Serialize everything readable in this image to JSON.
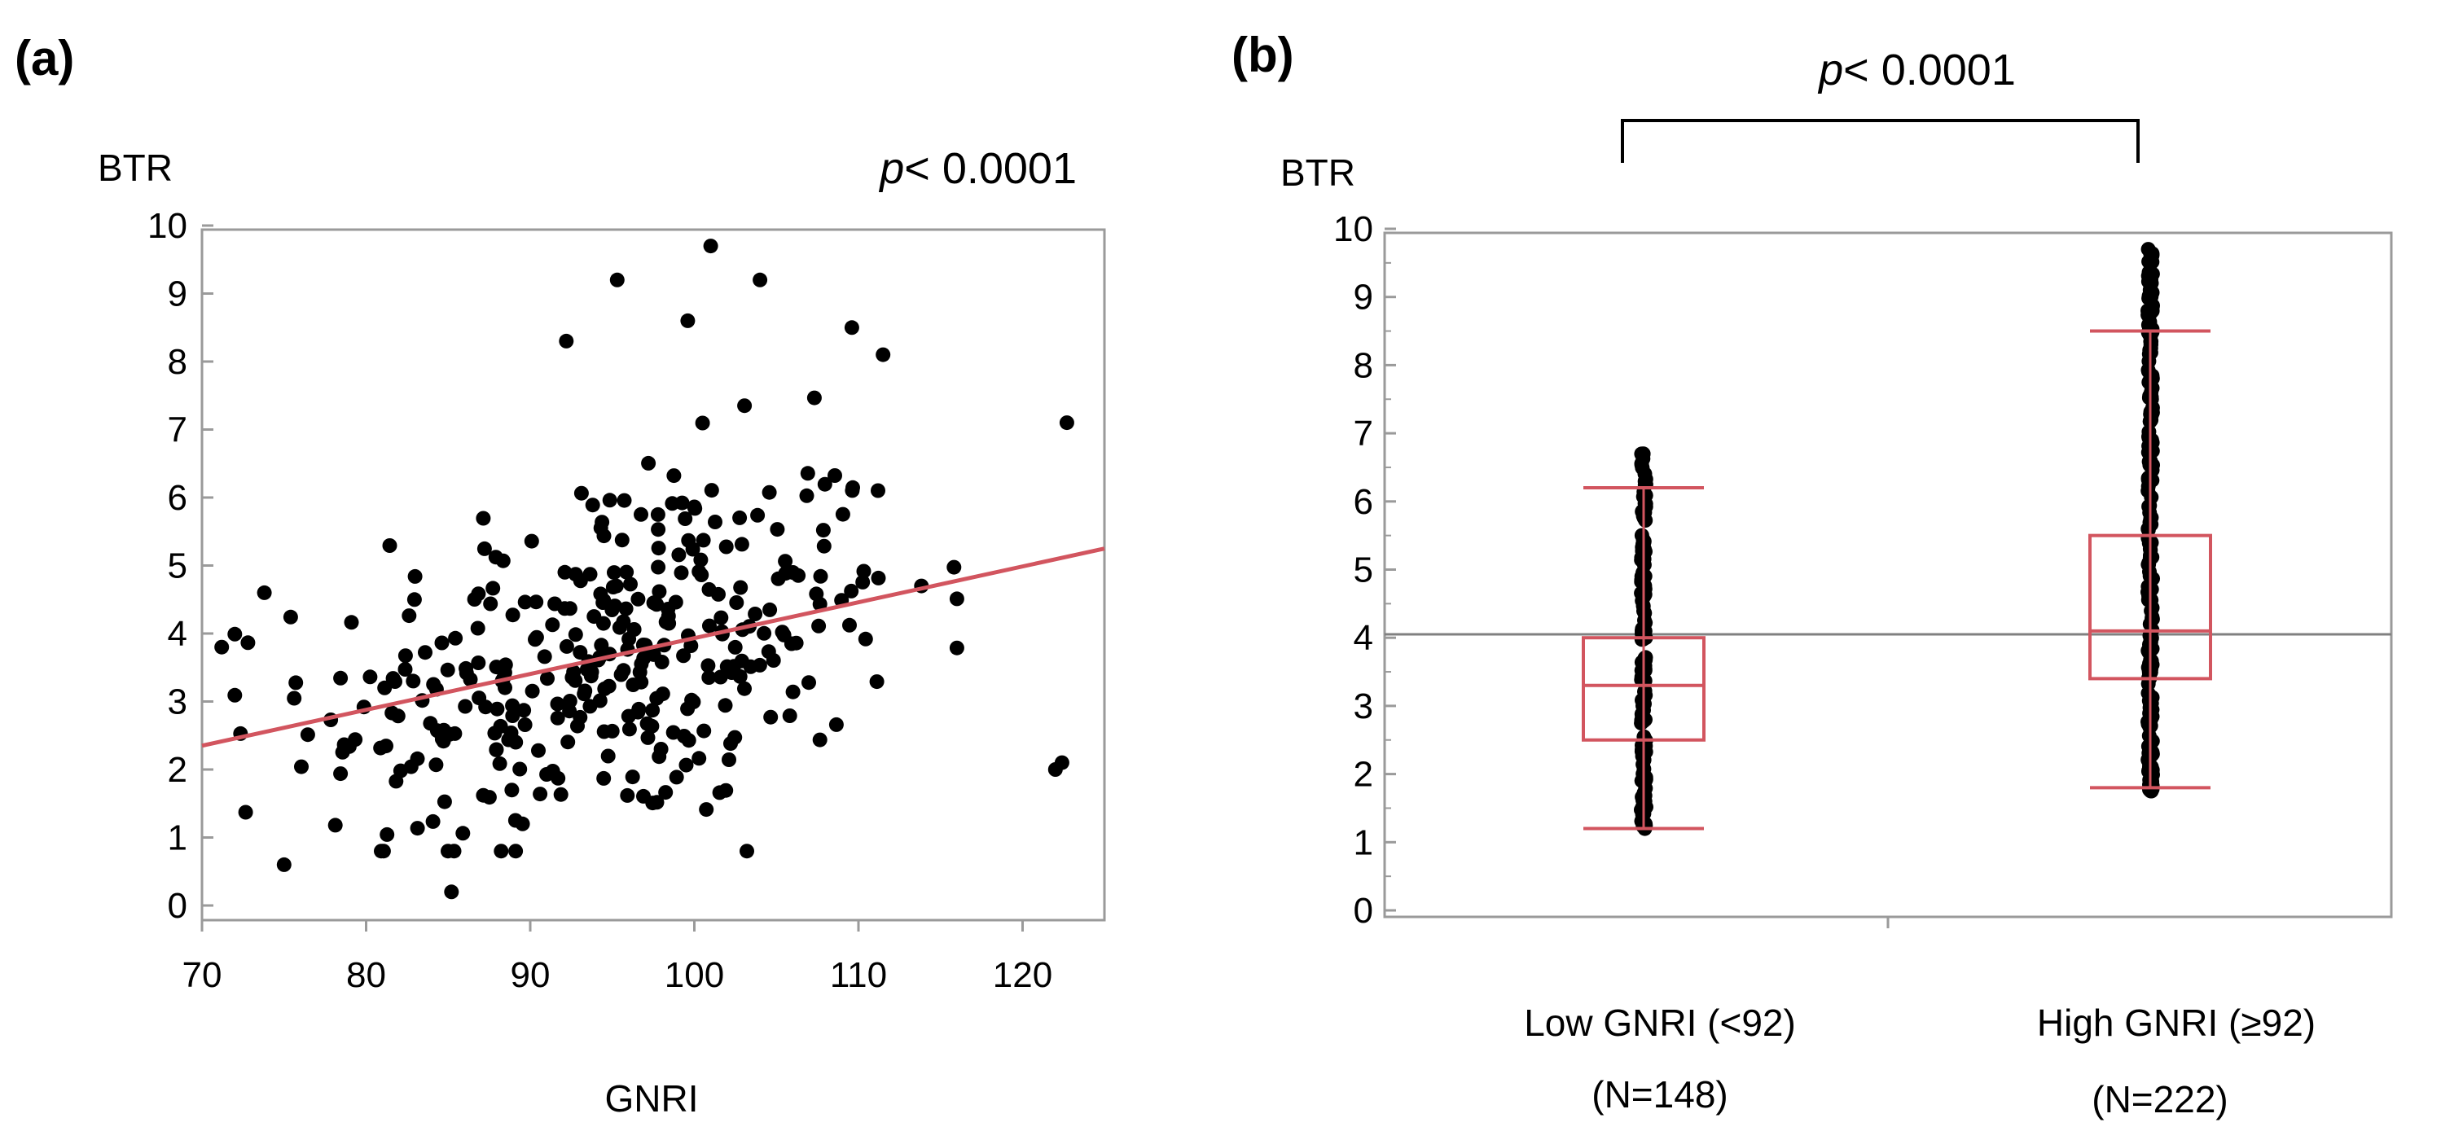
{
  "chart_data": [
    {
      "panel": "(a)",
      "type": "scatter",
      "title": "",
      "p_label": {
        "italic": "p",
        "rest": "< 0.0001"
      },
      "ylabel": "BTR",
      "xlabel": "GNRI",
      "xlim": [
        70,
        125
      ],
      "ylim": [
        0,
        10
      ],
      "x_ticks": [
        "70",
        "80",
        "90",
        "100",
        "110",
        "120"
      ],
      "y_ticks": [
        "0",
        "1",
        "2",
        "3",
        "4",
        "5",
        "6",
        "7",
        "8",
        "9",
        "10"
      ],
      "grid": false,
      "fit_line": {
        "x": [
          70,
          125
        ],
        "y": [
          2.35,
          5.25
        ],
        "color": "#d2555f"
      },
      "point_color": "#000000"
    },
    {
      "panel": "(b)",
      "type": "box",
      "p_label": {
        "italic": "p",
        "rest": "< 0.0001"
      },
      "ylabel": "BTR",
      "ylim": [
        0,
        10
      ],
      "y_ticks": [
        "0",
        "1",
        "2",
        "3",
        "4",
        "5",
        "6",
        "7",
        "8",
        "9",
        "10"
      ],
      "reference_line": 4.05,
      "box_color": "#d2555f",
      "groups": [
        {
          "name": "Low GNRI (<92)",
          "n_label": "(N=148)",
          "whisker_low": 1.2,
          "q1": 2.5,
          "median": 3.3,
          "q3": 4.0,
          "whisker_high": 6.2,
          "data_min": 1.2,
          "data_max": 6.7
        },
        {
          "name": "High GNRI (≥92)",
          "n_label": "(N=222)",
          "whisker_low": 1.8,
          "q1": 3.4,
          "median": 4.1,
          "q3": 5.5,
          "whisker_high": 8.5,
          "data_min": 1.75,
          "data_max": 9.7
        }
      ]
    }
  ]
}
